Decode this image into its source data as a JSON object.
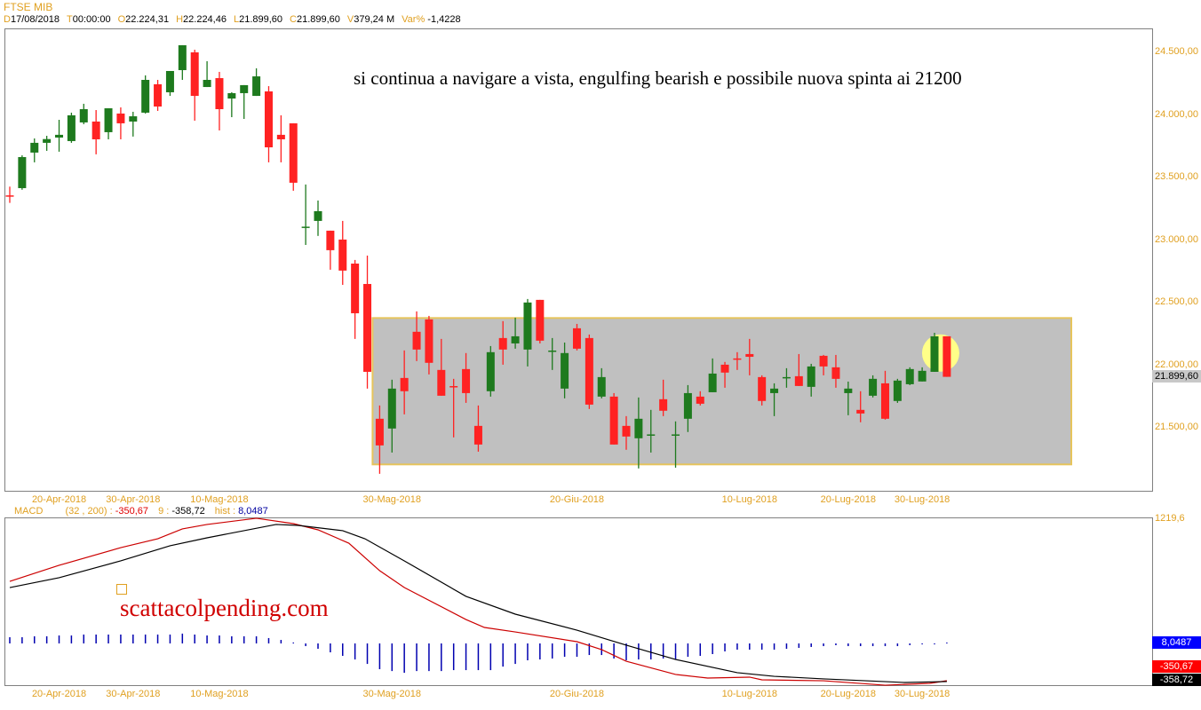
{
  "header": {
    "symbol": "FTSE MIB",
    "fields": [
      {
        "key": "D",
        "value": "17/08/2018"
      },
      {
        "key": "T",
        "value": "00:00:00"
      },
      {
        "key": "O",
        "value": "22.224,31"
      },
      {
        "key": "H",
        "value": "22.224,46"
      },
      {
        "key": "L",
        "value": "21.899,60"
      },
      {
        "key": "C",
        "value": "21.899,60"
      },
      {
        "key": "V",
        "value": "379,24 M"
      },
      {
        "key": "Var%",
        "value": "-1,4228"
      }
    ]
  },
  "annotation": "si continua a navigare a vista, engulfing bearish e possibile nuova spinta ai 21200",
  "watermark": "scattacolpending.com",
  "colors": {
    "up": "#1e7a1e",
    "down": "#ff2222",
    "zone": "#c0c0c0",
    "zone_border": "#e6c45c",
    "accent": "#e0a020",
    "macd": "#cc0000",
    "signal": "#000000",
    "hist": "#0000b0"
  },
  "chart_data": [
    {
      "type": "candlestick",
      "title": "FTSE MIB",
      "ylim": [
        21050,
        24650
      ],
      "yticks": [
        {
          "value": 24500,
          "label": "24.500,00"
        },
        {
          "value": 24000,
          "label": "24.000,00"
        },
        {
          "value": 23500,
          "label": "23.500,00"
        },
        {
          "value": 23000,
          "label": "23.000,00"
        },
        {
          "value": 22500,
          "label": "22.500,00"
        },
        {
          "value": 22000,
          "label": "22.000,00"
        },
        {
          "value": 21500,
          "label": "21.500,00"
        }
      ],
      "last_price": {
        "value": 21899.6,
        "label": "21.899,60"
      },
      "xticks": [
        {
          "index": 4,
          "label": "20-Apr-2018"
        },
        {
          "index": 10,
          "label": "30-Apr-2018"
        },
        {
          "index": 17,
          "label": "10-Mag-2018"
        },
        {
          "index": 31,
          "label": "30-Mag-2018"
        },
        {
          "index": 46,
          "label": "20-Giu-2018"
        },
        {
          "index": 60,
          "label": "10-Lug-2018"
        },
        {
          "index": 68,
          "label": "20-Lug-2018"
        },
        {
          "index": 74,
          "label": "30-Lug-2018"
        }
      ],
      "range_zone": {
        "from_index": 30,
        "to_index": 86,
        "top": 22370,
        "bottom": 21200
      },
      "highlight": {
        "index": 75.5,
        "price": 22090
      },
      "ohlc_columns": [
        "open",
        "high",
        "low",
        "close"
      ],
      "candles": [
        [
          23350,
          23420,
          23290,
          23340
        ],
        [
          23408,
          23670,
          23395,
          23656
        ],
        [
          23692,
          23805,
          23614,
          23770
        ],
        [
          23770,
          23826,
          23706,
          23800
        ],
        [
          23812,
          23954,
          23699,
          23834
        ],
        [
          23784,
          24011,
          23770,
          23990
        ],
        [
          23933,
          24082,
          23919,
          24039
        ],
        [
          23940,
          24032,
          23678,
          23798
        ],
        [
          23855,
          24046,
          23798,
          24046
        ],
        [
          24004,
          24053,
          23798,
          23926
        ],
        [
          23940,
          24018,
          23820,
          23982
        ],
        [
          24011,
          24309,
          24004,
          24273
        ],
        [
          24238,
          24273,
          24025,
          24060
        ],
        [
          24174,
          24344,
          24145,
          24344
        ],
        [
          24351,
          24550,
          24273,
          24550
        ],
        [
          24493,
          24514,
          23947,
          24145
        ],
        [
          24216,
          24422,
          24216,
          24273
        ],
        [
          24287,
          24337,
          23869,
          24039
        ],
        [
          24124,
          24174,
          23975,
          24167
        ],
        [
          24167,
          24231,
          23961,
          24231
        ],
        [
          24145,
          24365,
          24145,
          24301
        ],
        [
          24181,
          24223,
          23614,
          23734
        ],
        [
          23834,
          23990,
          23614,
          23798
        ],
        [
          23926,
          23926,
          23387,
          23451
        ],
        [
          23090,
          23437,
          22954,
          23100
        ],
        [
          23146,
          23309,
          23026,
          23224
        ],
        [
          23068,
          23068,
          22756,
          22912
        ],
        [
          22997,
          23146,
          22635,
          22749
        ],
        [
          22805,
          22834,
          22203,
          22408
        ],
        [
          22642,
          22869,
          21806,
          21940
        ],
        [
          21565,
          21671,
          21125,
          21352
        ],
        [
          21487,
          21877,
          21295,
          21806
        ],
        [
          21891,
          22111,
          21600,
          21785
        ],
        [
          22260,
          22423,
          22026,
          22118
        ],
        [
          22359,
          22387,
          21919,
          22012
        ],
        [
          21955,
          22203,
          21749,
          21749
        ],
        [
          21826,
          21884,
          21416,
          21820
        ],
        [
          21962,
          22090,
          21692,
          21770
        ],
        [
          21508,
          21671,
          21302,
          21359
        ],
        [
          21785,
          22146,
          21742,
          22097
        ],
        [
          22210,
          22345,
          21997,
          22118
        ],
        [
          22167,
          22373,
          22125,
          22224
        ],
        [
          22118,
          22522,
          21983,
          22494
        ],
        [
          22515,
          22515,
          22167,
          22189
        ],
        [
          22100,
          22210,
          21955,
          22110
        ],
        [
          21806,
          22174,
          21728,
          22090
        ],
        [
          22288,
          22323,
          22111,
          22125
        ],
        [
          22210,
          22238,
          21643,
          21678
        ],
        [
          21742,
          21969,
          21728,
          21898
        ],
        [
          21742,
          21770,
          21359,
          21359
        ],
        [
          21508,
          21586,
          21317,
          21423
        ],
        [
          21409,
          21735,
          21168,
          21565
        ],
        [
          21437,
          21636,
          21295,
          21440
        ],
        [
          21721,
          21877,
          21586,
          21629
        ],
        [
          21430,
          21544,
          21174,
          21440
        ],
        [
          21565,
          21834,
          21459,
          21770
        ],
        [
          21742,
          21785,
          21671,
          21685
        ],
        [
          21777,
          22047,
          21777,
          21926
        ],
        [
          21997,
          22019,
          21813,
          21934
        ],
        [
          22047,
          22097,
          21955,
          22040
        ],
        [
          22082,
          22203,
          21912,
          22060
        ],
        [
          21898,
          21912,
          21671,
          21707
        ],
        [
          21770,
          21848,
          21586,
          21806
        ],
        [
          21890,
          21969,
          21813,
          21898
        ],
        [
          21905,
          22082,
          21827,
          21827
        ],
        [
          21820,
          22004,
          21742,
          21983
        ],
        [
          22068,
          22075,
          21912,
          21983
        ],
        [
          21976,
          22075,
          21813,
          21884
        ],
        [
          21770,
          21862,
          21593,
          21806
        ],
        [
          21636,
          21785,
          21537,
          21607
        ],
        [
          21749,
          21912,
          21735,
          21884
        ],
        [
          21848,
          21948,
          21558,
          21565
        ],
        [
          21707,
          21884,
          21692,
          21870
        ],
        [
          21841,
          21976,
          21834,
          21962
        ],
        [
          21863,
          21976,
          21863,
          21948
        ],
        [
          21940,
          22252,
          21940,
          22224
        ],
        [
          22224,
          22224,
          21900,
          21900
        ]
      ]
    },
    {
      "type": "line",
      "title": "MACD",
      "params_label": "(32 , 200) :",
      "macd_label": "MACD",
      "macd_value": "-350,67",
      "signal_param": "9 :",
      "signal_value": "-358,72",
      "hist_label": "hist :",
      "hist_value": "8,0487",
      "scale_top": {
        "value": 1219.6,
        "label": "1219,6"
      },
      "ylim": [
        -520,
        1219.6
      ],
      "series": [
        {
          "name": "MACD",
          "points": [
            [
              0,
              610
            ],
            [
              4,
              765
            ],
            [
              9,
              936
            ],
            [
              12,
              1022
            ],
            [
              14,
              1117
            ],
            [
              16,
              1160
            ],
            [
              20,
              1220
            ],
            [
              23,
              1168
            ],
            [
              25,
              1108
            ],
            [
              27.5,
              979
            ],
            [
              30,
              713
            ],
            [
              32,
              550
            ],
            [
              37,
              241
            ],
            [
              38.5,
              164
            ],
            [
              41,
              121
            ],
            [
              46,
              27
            ],
            [
              48,
              -50
            ],
            [
              50,
              -162
            ],
            [
              54,
              -290
            ],
            [
              56.6,
              -325
            ],
            [
              60,
              -316
            ],
            [
              61,
              -342
            ],
            [
              66,
              -351
            ],
            [
              71,
              -394
            ],
            [
              74.6,
              -376
            ],
            [
              76,
              -350.67
            ]
          ]
        },
        {
          "name": "Signal",
          "points": [
            [
              0,
              550
            ],
            [
              4,
              645
            ],
            [
              9,
              808
            ],
            [
              13,
              954
            ],
            [
              16,
              1031
            ],
            [
              21.6,
              1160
            ],
            [
              23.4,
              1151
            ],
            [
              27,
              1100
            ],
            [
              28.8,
              1022
            ],
            [
              32,
              808
            ],
            [
              37,
              465
            ],
            [
              41,
              293
            ],
            [
              46,
              138
            ],
            [
              50,
              -7
            ],
            [
              54,
              -145
            ],
            [
              59,
              -273
            ],
            [
              62,
              -308
            ],
            [
              66,
              -333
            ],
            [
              72.6,
              -368
            ],
            [
              76,
              -358.72
            ]
          ]
        }
      ],
      "histogram": [
        60,
        60,
        69,
        69,
        77,
        77,
        86,
        86,
        86,
        86,
        86,
        86,
        86,
        86,
        95,
        86,
        77,
        77,
        69,
        69,
        69,
        52,
        34,
        9,
        -26,
        -52,
        -86,
        -120,
        -155,
        -198,
        -249,
        -267,
        -284,
        -267,
        -267,
        -267,
        -258,
        -258,
        -258,
        -258,
        -224,
        -198,
        -163,
        -155,
        -146,
        -129,
        -129,
        -112,
        -112,
        -146,
        -163,
        -155,
        -155,
        -146,
        -155,
        -129,
        -120,
        -103,
        -77,
        -60,
        -60,
        -60,
        -60,
        -52,
        -43,
        -34,
        -26,
        -17,
        -26,
        -26,
        -26,
        -26,
        -26,
        -17,
        -9,
        -9,
        8.05
      ]
    }
  ]
}
